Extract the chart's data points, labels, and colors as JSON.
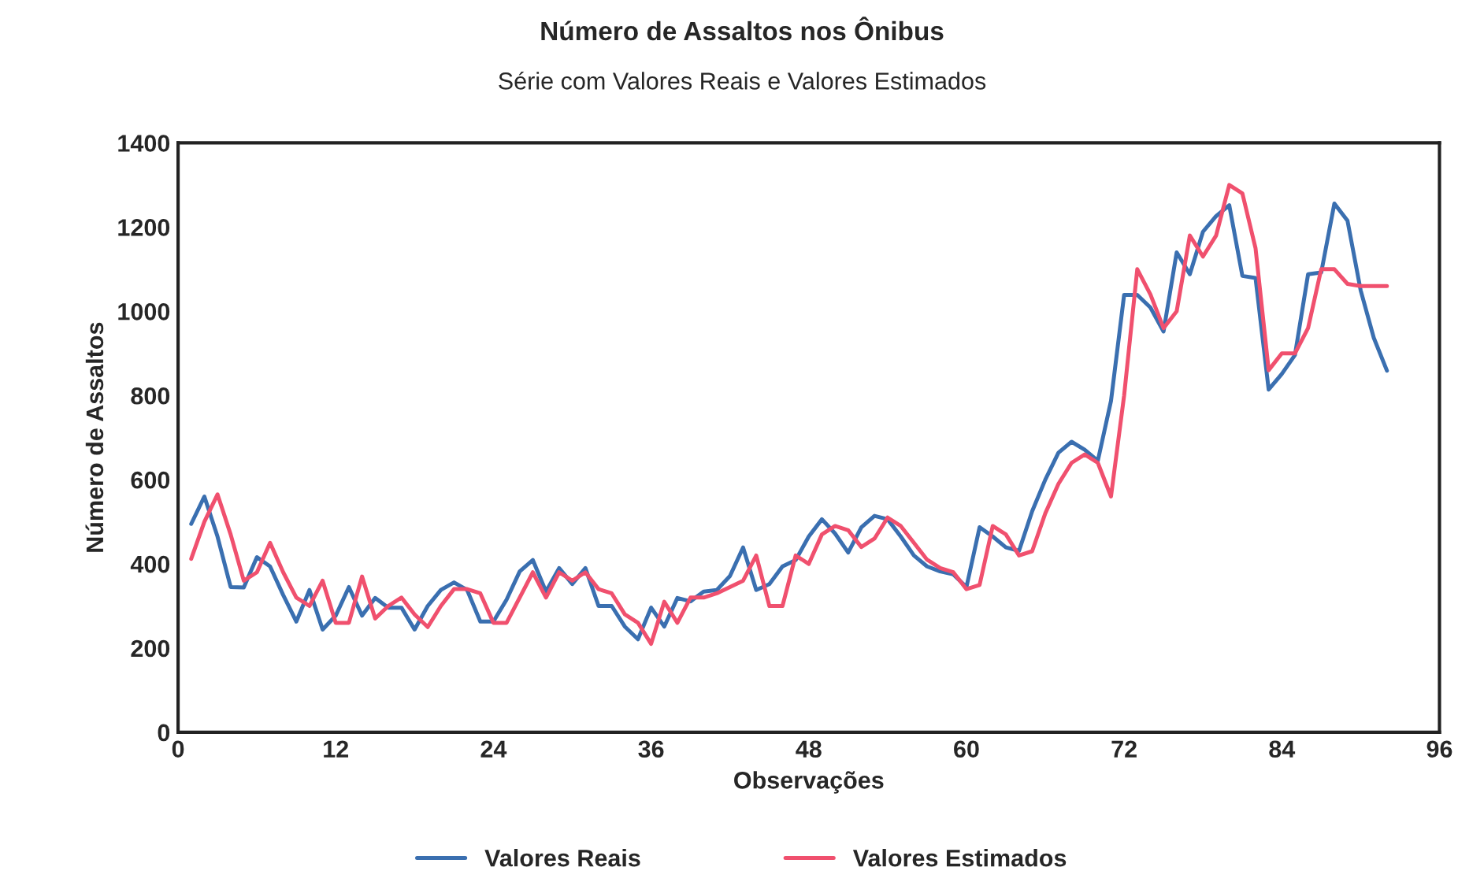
{
  "chart_data": {
    "type": "line",
    "title": "Número de Assaltos nos Ônibus",
    "subtitle": "Série com Valores Reais e Valores Estimados",
    "xlabel": "Observações",
    "ylabel": "Número de Assaltos",
    "x": [
      1,
      2,
      3,
      4,
      5,
      6,
      7,
      8,
      9,
      10,
      11,
      12,
      13,
      14,
      15,
      16,
      17,
      18,
      19,
      20,
      21,
      22,
      23,
      24,
      25,
      26,
      27,
      28,
      29,
      30,
      31,
      32,
      33,
      34,
      35,
      36,
      37,
      38,
      39,
      40,
      41,
      42,
      43,
      44,
      45,
      46,
      47,
      48,
      49,
      50,
      51,
      52,
      53,
      54,
      55,
      56,
      57,
      58,
      59,
      60,
      61,
      62,
      63,
      64,
      65,
      66,
      67,
      68,
      69,
      70,
      71,
      72,
      73,
      74,
      75,
      76,
      77,
      78,
      79,
      80,
      81,
      82,
      83,
      84,
      85,
      86,
      87,
      88,
      89,
      90,
      91,
      92
    ],
    "series": [
      {
        "name": "Valores Reais",
        "color": "#3a6fb0",
        "values": [
          495,
          560,
          465,
          345,
          344,
          416,
          394,
          326,
          263,
          338,
          244,
          277,
          345,
          277,
          319,
          296,
          296,
          244,
          300,
          338,
          356,
          338,
          263,
          263,
          315,
          382,
          409,
          334,
          390,
          352,
          390,
          300,
          300,
          251,
          221,
          296,
          251,
          319,
          311,
          334,
          338,
          371,
          439,
          338,
          352,
          394,
          409,
          465,
          506,
          472,
          427,
          487,
          514,
          506,
          465,
          420,
          394,
          382,
          375,
          345,
          487,
          465,
          439,
          431,
          525,
          600,
          664,
          690,
          671,
          645,
          787,
          1039,
          1039,
          1009,
          952,
          1140,
          1088,
          1189,
          1226,
          1252,
          1084,
          1079,
          814,
          851,
          896,
          1088,
          1092,
          1256,
          1215,
          1050,
          937,
          859
        ]
      },
      {
        "name": "Valores Estimados",
        "color": "#f0506e",
        "values": [
          412,
          500,
          565,
          470,
          360,
          380,
          450,
          380,
          320,
          300,
          360,
          260,
          260,
          370,
          270,
          300,
          320,
          280,
          250,
          300,
          340,
          340,
          330,
          260,
          260,
          320,
          380,
          320,
          380,
          360,
          380,
          340,
          330,
          280,
          260,
          210,
          310,
          260,
          320,
          320,
          330,
          345,
          360,
          420,
          300,
          300,
          420,
          400,
          470,
          490,
          480,
          440,
          460,
          510,
          490,
          450,
          410,
          390,
          380,
          340,
          350,
          490,
          470,
          420,
          430,
          520,
          590,
          640,
          660,
          640,
          560,
          800,
          1100,
          1040,
          960,
          1000,
          1180,
          1130,
          1180,
          1300,
          1280,
          1150,
          860,
          900,
          900,
          960,
          1100,
          1100,
          1065,
          1060,
          1060,
          1060
        ]
      }
    ],
    "xlim": [
      0,
      96
    ],
    "xticks": [
      0,
      12,
      24,
      36,
      48,
      60,
      72,
      84,
      96
    ],
    "ylim": [
      0,
      1400
    ],
    "yticks": [
      0,
      200,
      400,
      600,
      800,
      1000,
      1200,
      1400
    ],
    "grid": false,
    "legend": "bottom",
    "line_style": "solid",
    "marker": "none"
  }
}
